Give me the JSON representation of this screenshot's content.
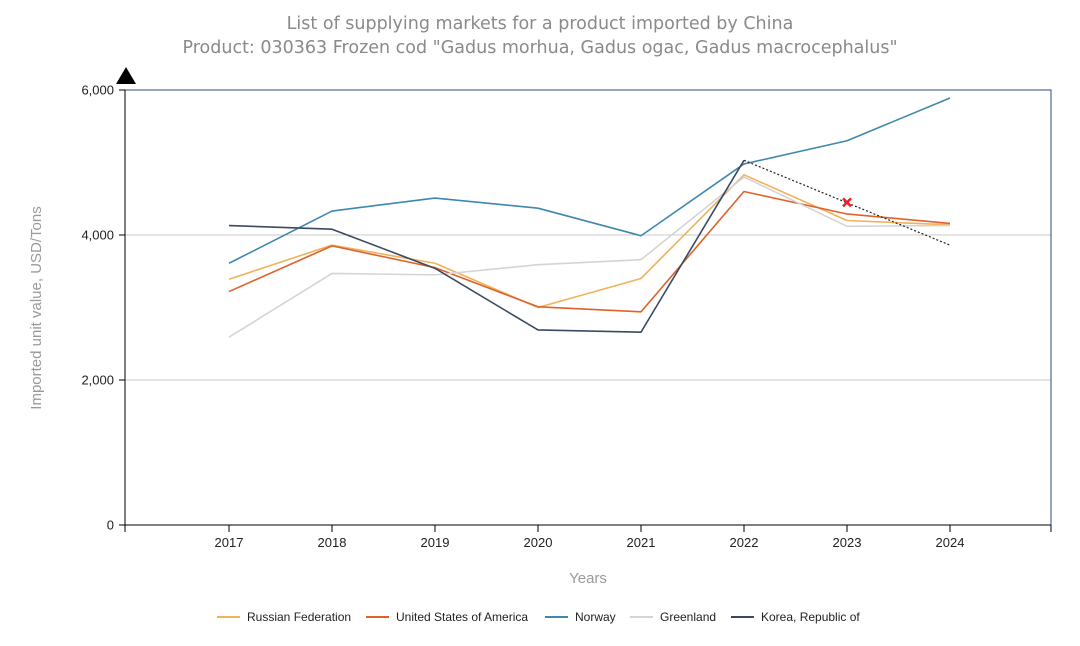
{
  "chart_data": {
    "type": "line",
    "title": "List of supplying markets for a product imported by China",
    "subtitle": "Product: 030363 Frozen cod \"Gadus morhua, Gadus ogac, Gadus macrocephalus\"",
    "xlabel": "Years",
    "ylabel": "Imported unit value, USD/Tons",
    "categories": [
      "2017",
      "2018",
      "2019",
      "2020",
      "2021",
      "2022",
      "2023",
      "2024"
    ],
    "ylim": [
      0,
      6000
    ],
    "yticks": [
      0,
      2000,
      4000,
      6000
    ],
    "ytick_labels": [
      "0",
      "2,000",
      "4,000",
      "6,000"
    ],
    "gridlines": [
      2000,
      4000
    ],
    "legend_position": "bottom",
    "series": [
      {
        "name": "Russian Federation",
        "color": "#f0b25a",
        "values": [
          3390,
          3860,
          3610,
          3000,
          3400,
          4830,
          4200,
          4140
        ]
      },
      {
        "name": "United States of America",
        "color": "#e0622a",
        "values": [
          3220,
          3850,
          3550,
          3010,
          2940,
          4600,
          4290,
          4160
        ]
      },
      {
        "name": "Norway",
        "color": "#3e88ad",
        "values": [
          3610,
          4330,
          4510,
          4370,
          3990,
          4980,
          5300,
          5890
        ]
      },
      {
        "name": "Greenland",
        "color": "#d4d4d4",
        "values": [
          2590,
          3470,
          3450,
          3590,
          3660,
          4800,
          4120,
          4130
        ]
      },
      {
        "name": "Korea, Republic of",
        "color": "#3a4a60",
        "values": [
          4130,
          4080,
          3540,
          2690,
          2660,
          5030,
          null,
          null
        ]
      }
    ],
    "trend_line": {
      "from_category": "2022",
      "from_value": 5030,
      "to_category": "2024",
      "to_value": 3860,
      "style": "dotted",
      "color": "#222222"
    },
    "marker": {
      "category": "2023",
      "value": 4450,
      "symbol": "x",
      "color": "#e8212f"
    }
  }
}
